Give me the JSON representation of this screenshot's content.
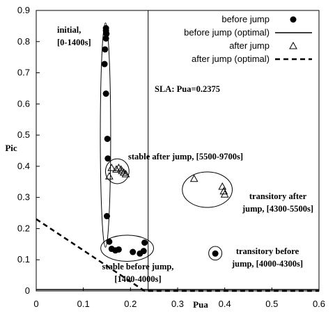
{
  "chart_data": {
    "type": "scatter",
    "xlabel": "Pua",
    "ylabel": "Pic",
    "xlim": [
      0,
      0.6
    ],
    "ylim": [
      0,
      0.9
    ],
    "xticks": [
      "0",
      "0.1",
      "0.2",
      "0.3",
      "0.4",
      "0.5",
      "0.6"
    ],
    "yticks": [
      "0",
      "0.1",
      "0.2",
      "0.3",
      "0.4",
      "0.5",
      "0.6",
      "0.7",
      "0.8",
      "0.9"
    ],
    "grid": false,
    "legend_position": "top-right",
    "series": [
      {
        "name": "before jump",
        "marker": "filled-circle",
        "points": [
          [
            0.148,
            0.843
          ],
          [
            0.148,
            0.835
          ],
          [
            0.149,
            0.825
          ],
          [
            0.148,
            0.81
          ],
          [
            0.146,
            0.775
          ],
          [
            0.145,
            0.728
          ],
          [
            0.148,
            0.633
          ],
          [
            0.151,
            0.488
          ],
          [
            0.152,
            0.425
          ],
          [
            0.15,
            0.24
          ],
          [
            0.155,
            0.158
          ],
          [
            0.16,
            0.135
          ],
          [
            0.168,
            0.13
          ],
          [
            0.175,
            0.133
          ],
          [
            0.205,
            0.125
          ],
          [
            0.22,
            0.12
          ],
          [
            0.228,
            0.128
          ],
          [
            0.23,
            0.155
          ],
          [
            0.38,
            0.12
          ]
        ]
      },
      {
        "name": "before jump (optimal)",
        "line_style": "solid",
        "points": [
          [
            0,
            0.0
          ],
          [
            0.6,
            0.0
          ]
        ]
      },
      {
        "name": "after jump",
        "marker": "open-triangle",
        "points": [
          [
            0.16,
            0.395
          ],
          [
            0.155,
            0.368
          ],
          [
            0.17,
            0.39
          ],
          [
            0.175,
            0.395
          ],
          [
            0.18,
            0.39
          ],
          [
            0.182,
            0.385
          ],
          [
            0.186,
            0.38
          ],
          [
            0.19,
            0.375
          ],
          [
            0.335,
            0.36
          ],
          [
            0.395,
            0.335
          ],
          [
            0.398,
            0.32
          ],
          [
            0.4,
            0.31
          ]
        ]
      },
      {
        "name": "after jump (optimal)",
        "line_style": "dashed",
        "points": [
          [
            0,
            0.2305
          ],
          [
            0.23,
            0.0
          ],
          [
            0.6,
            0.0
          ]
        ]
      }
    ],
    "reference_line": {
      "x": 0.2375,
      "label": "SLA: Pua=0.2375"
    },
    "regions": [
      {
        "label_lines": [
          "initial,",
          "[0-1400s]"
        ],
        "cx": 0.147,
        "cy": 0.5,
        "rx": 0.011,
        "ry": 0.36
      },
      {
        "label_lines": [
          "stable after jump, [5500-9700s]"
        ],
        "cx": 0.172,
        "cy": 0.384,
        "rx": 0.025,
        "ry": 0.04
      },
      {
        "label_lines": [
          "transitory after",
          "jump, [4300-5500s]"
        ],
        "cx": 0.363,
        "cy": 0.325,
        "rx": 0.053,
        "ry": 0.057
      },
      {
        "label_lines": [
          "stable before jump,",
          "[1400-4000s]"
        ],
        "cx": 0.193,
        "cy": 0.137,
        "rx": 0.056,
        "ry": 0.042
      },
      {
        "label_lines": [
          "transitory before",
          "jump, [4000-4300s]"
        ],
        "cx": 0.38,
        "cy": 0.121,
        "rx": 0.014,
        "ry": 0.022
      }
    ]
  }
}
